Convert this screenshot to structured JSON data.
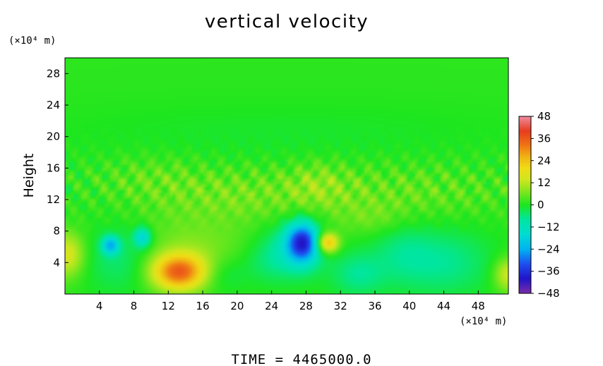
{
  "chart_data": {
    "type": "heatmap",
    "title": "vertical velocity",
    "ylabel": "Height",
    "xlabel": "",
    "x_unit": "(×10⁴ m)",
    "y_unit": "(×10⁴ m)",
    "xlim": [
      0,
      51.5
    ],
    "ylim": [
      0,
      30
    ],
    "x_ticks": [
      4,
      8,
      12,
      16,
      20,
      24,
      28,
      32,
      36,
      40,
      44,
      48
    ],
    "y_ticks": [
      4,
      8,
      12,
      16,
      20,
      24,
      28
    ],
    "colorbar": {
      "min": -48,
      "max": 48,
      "ticks": [
        48,
        36,
        24,
        12,
        0,
        -12,
        -24,
        -36,
        -48
      ],
      "tick_labels": [
        "48",
        "36",
        "24",
        "12",
        "0",
        "−12",
        "−24",
        "−36",
        "−48"
      ],
      "colors": [
        {
          "value": -48,
          "color": "#7a2ea8"
        },
        {
          "value": -40,
          "color": "#2014c8"
        },
        {
          "value": -32,
          "color": "#1e4ff0"
        },
        {
          "value": -24,
          "color": "#00b4f0"
        },
        {
          "value": -16,
          "color": "#00dcd2"
        },
        {
          "value": -8,
          "color": "#00e6a0"
        },
        {
          "value": 0,
          "color": "#1ee61e"
        },
        {
          "value": 8,
          "color": "#8ce61e"
        },
        {
          "value": 14,
          "color": "#d2e61e"
        },
        {
          "value": 20,
          "color": "#f0dc14"
        },
        {
          "value": 26,
          "color": "#f0b414"
        },
        {
          "value": 32,
          "color": "#f07814"
        },
        {
          "value": 40,
          "color": "#e63c1e"
        },
        {
          "value": 48,
          "color": "#f08ca0"
        }
      ]
    },
    "background_value": 1,
    "features": [
      {
        "x": 13.2,
        "y": 2.8,
        "sx": 2.2,
        "sy": 1.6,
        "value": 32
      },
      {
        "x": 14.5,
        "y": 5.5,
        "sx": 5.0,
        "sy": 3.0,
        "value": 6
      },
      {
        "x": 30.5,
        "y": 6.5,
        "sx": 0.9,
        "sy": 0.9,
        "value": 26
      },
      {
        "x": 0.3,
        "y": 5.0,
        "sx": 1.4,
        "sy": 2.0,
        "value": 15
      },
      {
        "x": 51.5,
        "y": 2.5,
        "sx": 1.2,
        "sy": 1.5,
        "value": 14
      },
      {
        "x": 27.6,
        "y": 6.6,
        "sx": 1.3,
        "sy": 1.8,
        "value": -34
      },
      {
        "x": 26.3,
        "y": 5.5,
        "sx": 2.5,
        "sy": 2.5,
        "value": -10
      },
      {
        "x": 5.3,
        "y": 6.2,
        "sx": 0.7,
        "sy": 0.8,
        "value": -22
      },
      {
        "x": 9.0,
        "y": 7.2,
        "sx": 0.7,
        "sy": 0.9,
        "value": -18
      },
      {
        "x": 6.5,
        "y": 4.5,
        "sx": 3.0,
        "sy": 3.0,
        "value": -7
      },
      {
        "x": 18.5,
        "y": 2.5,
        "sx": 1.8,
        "sy": 1.6,
        "value": -5
      },
      {
        "x": 34.0,
        "y": 2.5,
        "sx": 2.2,
        "sy": 2.0,
        "value": -8
      },
      {
        "x": 44.0,
        "y": 4.0,
        "sx": 4.0,
        "sy": 3.0,
        "value": -8
      },
      {
        "x": 39.0,
        "y": 5.5,
        "sx": 2.5,
        "sy": 3.0,
        "value": -5
      },
      {
        "x": 23.0,
        "y": 4.0,
        "sx": 2.0,
        "sy": 2.0,
        "value": -4
      },
      {
        "x": 20.0,
        "y": 12.5,
        "sx": 8.0,
        "sy": 2.5,
        "value": 5
      },
      {
        "x": 40.0,
        "y": 13.0,
        "sx": 8.0,
        "sy": 2.5,
        "value": 4
      },
      {
        "x": 10.0,
        "y": 15.0,
        "sx": 4.0,
        "sy": 2.0,
        "value": 3
      },
      {
        "x": 29.5,
        "y": 14.0,
        "sx": 2.5,
        "sy": 2.0,
        "value": 5
      },
      {
        "x": 25.0,
        "y": 20.0,
        "sx": 20.0,
        "sy": 3.0,
        "value": -2
      },
      {
        "x": 36.0,
        "y": 9.5,
        "sx": 3.0,
        "sy": 1.5,
        "value": 4
      }
    ]
  },
  "footer": {
    "time_text": "TIME = 4465000.0"
  }
}
